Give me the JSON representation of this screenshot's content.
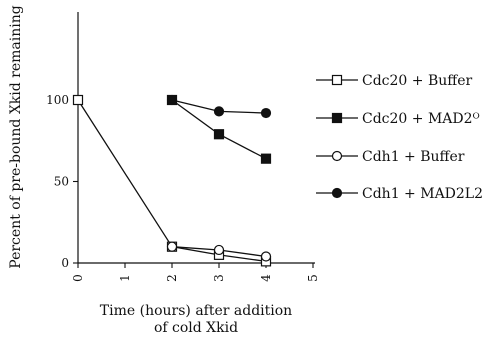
{
  "chart_data": {
    "type": "line",
    "title": "",
    "xlabel_line1": "Time (hours) after addition",
    "xlabel_line2": "of cold Xkid",
    "ylabel": "Percent of pre-bound  Xkid remaining",
    "xlim": [
      0,
      5
    ],
    "ylim": [
      0,
      100
    ],
    "x_ticks": [
      "0",
      "1",
      "2",
      "3",
      "4",
      "5"
    ],
    "y_ticks": [
      "0",
      "50",
      "100"
    ],
    "grid": false,
    "legend_position": "right",
    "series": [
      {
        "name": "Cdc20 + Buffer",
        "marker": "open-square",
        "x": [
          0,
          2,
          3,
          4
        ],
        "y": [
          100,
          10,
          5,
          1
        ]
      },
      {
        "name": "Cdc20 + MAD2ᴼ",
        "marker": "filled-square",
        "x": [
          2,
          3,
          4
        ],
        "y": [
          100,
          79,
          64
        ]
      },
      {
        "name": "Cdh1 + Buffer",
        "marker": "open-circle",
        "x": [
          2,
          3,
          4
        ],
        "y": [
          10,
          8,
          4
        ]
      },
      {
        "name": "Cdh1 + MAD2L2",
        "marker": "filled-circle",
        "x": [
          2,
          3,
          4
        ],
        "y": [
          100,
          93,
          92
        ]
      }
    ]
  }
}
